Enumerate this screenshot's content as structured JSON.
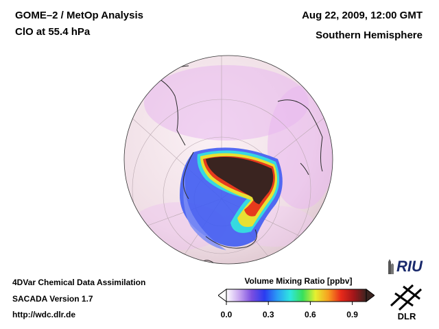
{
  "header": {
    "title_line1": "GOME–2 / MetOp Analysis",
    "title_line2": "ClO at 55.4 hPa",
    "date_line": "Aug 22, 2009, 12:00 GMT",
    "region_line": "Southern Hemisphere"
  },
  "footer": {
    "line1": "4DVar Chemical Data Assimilation",
    "line2": "SACADA Version 1.7",
    "line3": "http://wdc.dlr.de"
  },
  "colorbar": {
    "title": "Volume Mixing Ratio [ppbv]",
    "ticks": [
      "0.0",
      "0.3",
      "0.6",
      "0.9"
    ],
    "min": 0.0,
    "max": 1.0,
    "colors": [
      "#ffffff",
      "#c9a8f0",
      "#7a4ee0",
      "#2a3cf0",
      "#2a9cf5",
      "#2fe6e0",
      "#38e05a",
      "#e6f030",
      "#f7a020",
      "#e82a1a",
      "#a3161a",
      "#3a2420"
    ]
  },
  "logos": {
    "riu": "RIU",
    "dlr": "DLR"
  }
}
